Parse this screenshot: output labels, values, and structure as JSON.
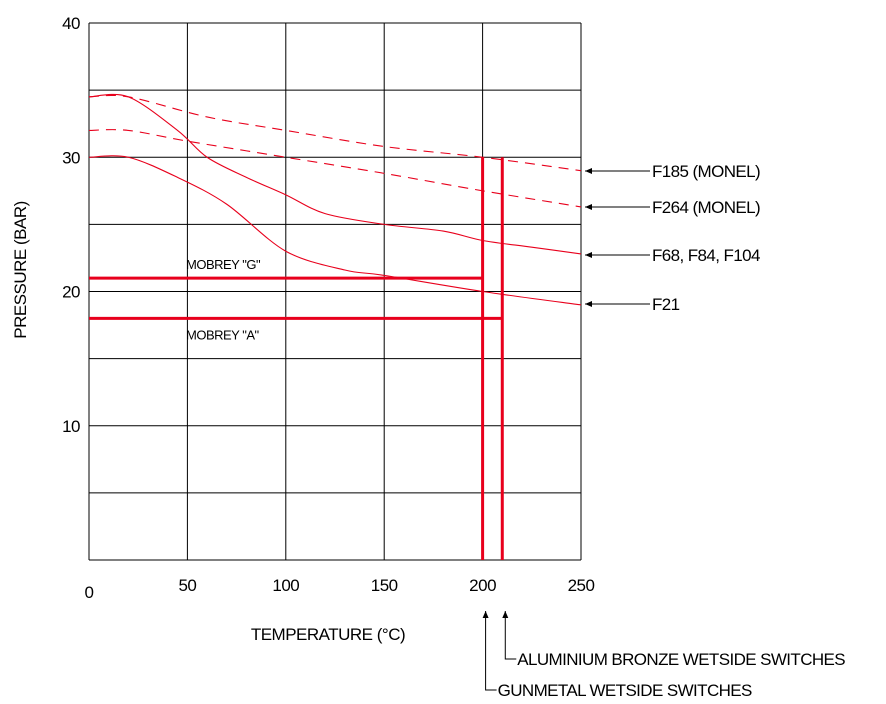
{
  "chart_data": {
    "type": "line",
    "xlabel": "TEMPERATURE (°C)",
    "ylabel": "PRESSURE (BAR)",
    "xlim": [
      0,
      250
    ],
    "ylim": [
      0,
      40
    ],
    "x_ticks": [
      "0",
      "50",
      "100",
      "150",
      "200",
      "250"
    ],
    "y_ticks": [
      "10",
      "20",
      "30",
      "40"
    ],
    "x_grid": [
      0,
      50,
      100,
      150,
      200,
      250
    ],
    "y_grid": [
      0,
      5,
      10,
      15,
      20,
      25,
      30,
      35,
      40
    ],
    "grid": true,
    "colors": {
      "curve": "#e8001c",
      "limit": "#e8001c",
      "grid": "#000000"
    },
    "series": [
      {
        "name": "F185 (MONEL)",
        "style": "dashed",
        "x": [
          0,
          20,
          60,
          100,
          150,
          200,
          250
        ],
        "y": [
          34.5,
          34.5,
          33.0,
          32.0,
          30.8,
          30.0,
          29.0
        ]
      },
      {
        "name": "F264 (MONEL)",
        "style": "dashed",
        "x": [
          0,
          20,
          50,
          100,
          150,
          200,
          250
        ],
        "y": [
          32.0,
          32.0,
          31.2,
          30.0,
          28.8,
          27.5,
          26.3
        ]
      },
      {
        "name": "F68, F84, F104",
        "style": "solid",
        "x": [
          0,
          20,
          45,
          60,
          80,
          100,
          120,
          150,
          180,
          200,
          225,
          250
        ],
        "y": [
          34.5,
          34.5,
          32.0,
          30.0,
          28.5,
          27.2,
          25.8,
          25.0,
          24.5,
          23.8,
          23.3,
          22.8
        ]
      },
      {
        "name": "F21",
        "style": "solid",
        "x": [
          0,
          20,
          45,
          70,
          100,
          130,
          150,
          200,
          250
        ],
        "y": [
          30.0,
          30.0,
          28.5,
          26.5,
          23.0,
          21.6,
          21.2,
          20.0,
          19.0
        ]
      }
    ],
    "limits": [
      {
        "label": "MOBREY \"G\"",
        "orientation": "horizontal",
        "y": 21,
        "x_end": 200
      },
      {
        "label": "MOBREY \"A\"",
        "orientation": "horizontal",
        "y": 18,
        "x_end": 210
      },
      {
        "label": "GUNMETAL WETSIDE SWITCHES",
        "orientation": "vertical",
        "x": 200,
        "y_end": 30
      },
      {
        "label": "ALUMINIUM BRONZE WETSIDE SWITCHES",
        "orientation": "vertical",
        "x": 210,
        "y_end": 30
      }
    ]
  }
}
